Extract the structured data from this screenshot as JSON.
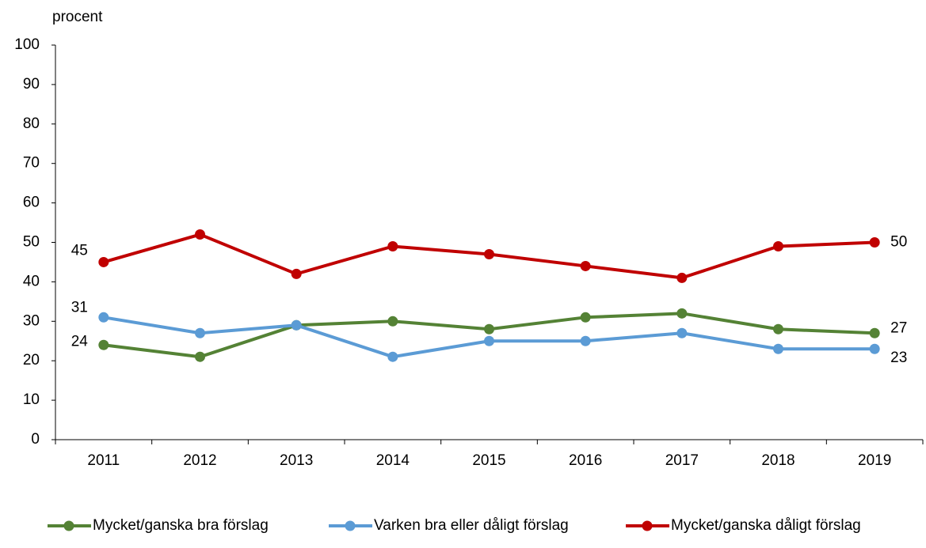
{
  "chart_data": {
    "type": "line",
    "y_label": "procent",
    "categories": [
      "2011",
      "2012",
      "2013",
      "2014",
      "2015",
      "2016",
      "2017",
      "2018",
      "2019"
    ],
    "series": [
      {
        "name": "Mycket/ganska bra förslag",
        "color": "#548235",
        "values": [
          24,
          21,
          29,
          30,
          28,
          31,
          32,
          28,
          27
        ]
      },
      {
        "name": "Varken bra eller dåligt förslag",
        "color": "#5b9bd5",
        "values": [
          31,
          27,
          29,
          21,
          25,
          25,
          27,
          23,
          23
        ]
      },
      {
        "name": "Mycket/ganska dåligt förslag",
        "color": "#c00000",
        "values": [
          45,
          52,
          42,
          49,
          47,
          44,
          41,
          49,
          50
        ]
      }
    ],
    "ylim": [
      0,
      100
    ],
    "yticks": [
      0,
      10,
      20,
      30,
      40,
      50,
      60,
      70,
      80,
      90,
      100
    ],
    "grid": false,
    "legend": "bottom"
  }
}
